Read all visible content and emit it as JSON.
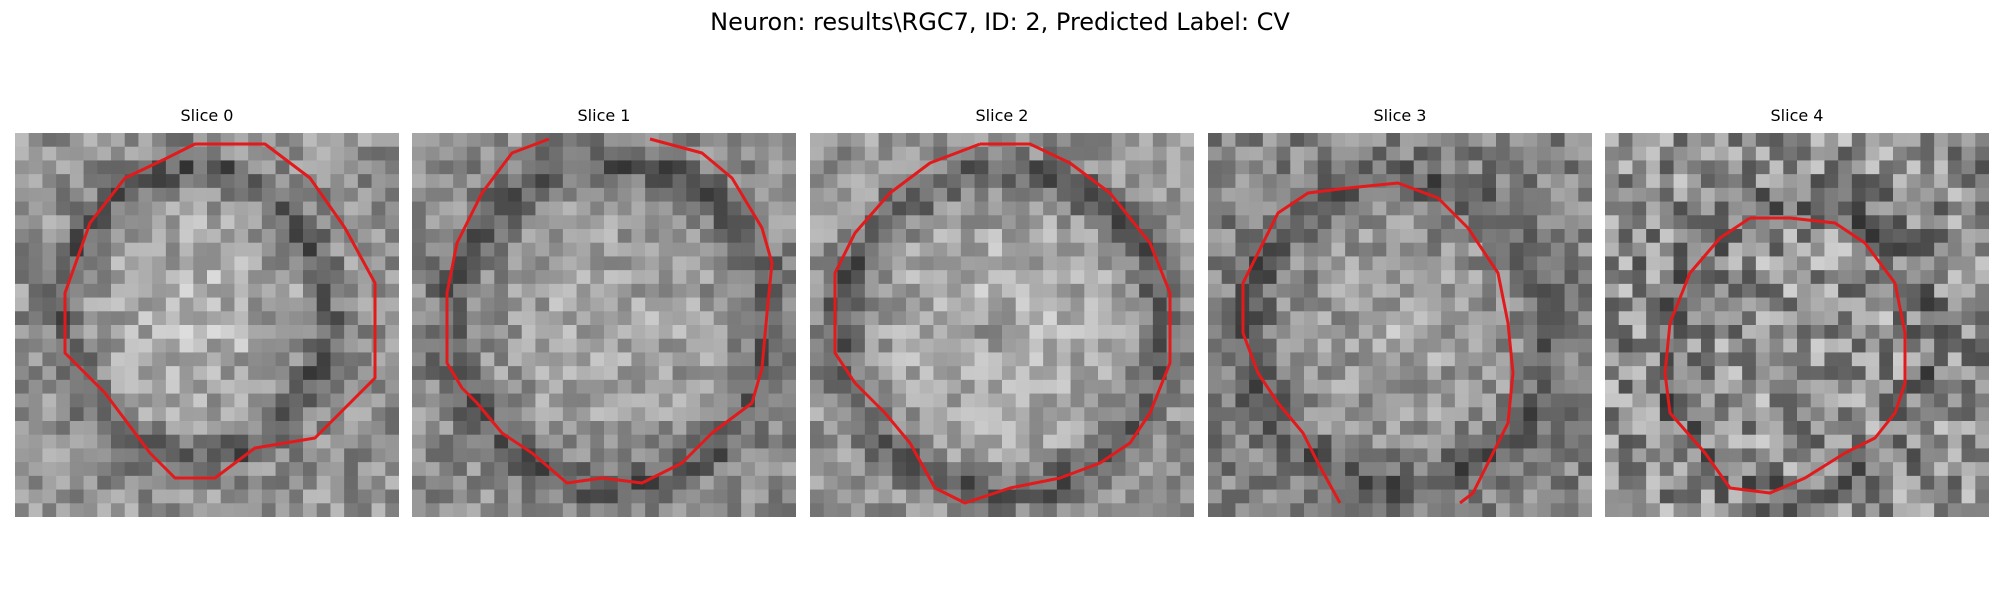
{
  "figure": {
    "title": "Neuron: results\\RGC7, ID: 2, Predicted Label: CV"
  },
  "overlay_color": "#e31a1c",
  "panels": [
    {
      "title": "Slice 0"
    },
    {
      "title": "Slice 1"
    },
    {
      "title": "Slice 2"
    },
    {
      "title": "Slice 3"
    },
    {
      "title": "Slice 4"
    }
  ]
}
